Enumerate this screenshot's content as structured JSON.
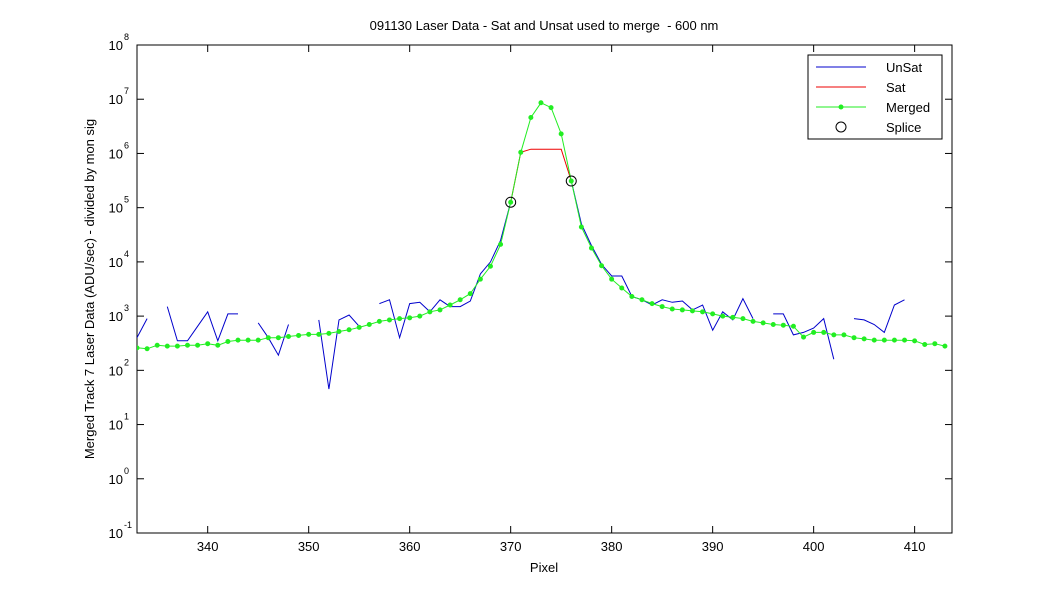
{
  "chart_data": {
    "type": "line",
    "title": "091130 Laser Data - Sat and Unsat used to merge  - 600 nm",
    "x_label": "Pixel",
    "y_label": "Merged Track 7 Laser Data (ADU/sec) - divided by mon sig",
    "log_y": true,
    "legend": "upper right",
    "xlim": [
      333,
      413.7
    ],
    "xticks": [
      340,
      350,
      360,
      370,
      380,
      390,
      400,
      410
    ],
    "ylim": [
      0.1,
      100000000
    ],
    "yticks": [
      {
        "value": 0.1,
        "label": "10",
        "power": "-1"
      },
      {
        "value": 1,
        "label": "10",
        "power": "0"
      },
      {
        "value": 10,
        "label": "10",
        "power": "1"
      },
      {
        "value": 100,
        "label": "10",
        "power": "2"
      },
      {
        "value": 1000,
        "label": "10",
        "power": "3"
      },
      {
        "value": 10000,
        "label": "10",
        "power": "4"
      },
      {
        "value": 100000,
        "label": "10",
        "power": "5"
      },
      {
        "value": 1000000,
        "label": "10",
        "power": "6"
      },
      {
        "value": 10000000,
        "label": "10",
        "power": "7"
      },
      {
        "value": 100000000,
        "label": "10",
        "power": "8"
      }
    ],
    "x": [
      333,
      334,
      335,
      336,
      337,
      338,
      339,
      340,
      341,
      342,
      343,
      344,
      345,
      346,
      347,
      348,
      349,
      350,
      351,
      352,
      353,
      354,
      355,
      356,
      357,
      358,
      359,
      360,
      361,
      362,
      363,
      364,
      365,
      366,
      367,
      368,
      369,
      370,
      371,
      372,
      373,
      374,
      375,
      376,
      377,
      378,
      379,
      380,
      381,
      382,
      383,
      384,
      385,
      386,
      387,
      388,
      389,
      390,
      391,
      392,
      393,
      394,
      395,
      396,
      397,
      398,
      399,
      400,
      401,
      402,
      403,
      404,
      405,
      406,
      407,
      408,
      409,
      410,
      411,
      412,
      413
    ],
    "series": [
      {
        "name": "UnSat",
        "color": "#0000cc",
        "style": "line",
        "values": [
          400,
          900,
          null,
          1500,
          350,
          350,
          650,
          1200,
          350,
          1100,
          1100,
          null,
          750,
          400,
          190,
          700,
          null,
          null,
          850,
          45,
          850,
          1050,
          650,
          null,
          1700,
          2000,
          400,
          1700,
          1800,
          1200,
          2000,
          1500,
          1500,
          1900,
          6000,
          10000,
          25000,
          126000,
          null,
          null,
          null,
          null,
          null,
          310000,
          50000,
          20000,
          9000,
          5500,
          5500,
          2300,
          2000,
          1600,
          2000,
          1800,
          1900,
          1300,
          1600,
          550,
          1200,
          850,
          2100,
          900,
          null,
          1100,
          1100,
          450,
          500,
          600,
          900,
          160,
          null,
          900,
          850,
          700,
          500,
          1600,
          2000,
          null,
          null,
          null,
          null
        ]
      },
      {
        "name": "Sat",
        "color": "#ee0000",
        "style": "line",
        "values": [
          null,
          null,
          null,
          null,
          null,
          null,
          null,
          null,
          null,
          null,
          null,
          null,
          null,
          null,
          null,
          null,
          null,
          null,
          null,
          null,
          null,
          null,
          null,
          null,
          null,
          null,
          null,
          null,
          null,
          null,
          null,
          null,
          null,
          null,
          null,
          null,
          null,
          126000,
          1050000,
          1200000,
          1200000,
          1200000,
          1200000,
          310000,
          null,
          null,
          null,
          null,
          null,
          null,
          null,
          null,
          null,
          null,
          null,
          null,
          null,
          null,
          null,
          null,
          null,
          null,
          null,
          null,
          null,
          null,
          null,
          null,
          null,
          null,
          null,
          null,
          null,
          null,
          null,
          null,
          null,
          null,
          null,
          null,
          null
        ]
      },
      {
        "name": "Merged",
        "color": "#22ee22",
        "style": "line-dots",
        "values": [
          260,
          250,
          290,
          280,
          280,
          290,
          290,
          310,
          290,
          340,
          360,
          360,
          360,
          400,
          400,
          420,
          440,
          460,
          460,
          480,
          520,
          560,
          620,
          700,
          800,
          850,
          900,
          930,
          1000,
          1200,
          1300,
          1600,
          2000,
          2600,
          4800,
          8300,
          21000,
          126000,
          1050000,
          4600000,
          8600000,
          7000000,
          2300000,
          310000,
          44000,
          18000,
          8500,
          4800,
          3300,
          2300,
          2000,
          1700,
          1500,
          1350,
          1300,
          1250,
          1200,
          1100,
          1000,
          950,
          900,
          800,
          750,
          700,
          680,
          650,
          410,
          500,
          500,
          450,
          450,
          400,
          380,
          360,
          360,
          360,
          360,
          350,
          300,
          310,
          280
        ]
      },
      {
        "name": "Splice",
        "color": "#000000",
        "style": "circles",
        "x": [
          370,
          376
        ],
        "values": [
          126000,
          310000
        ]
      }
    ]
  }
}
